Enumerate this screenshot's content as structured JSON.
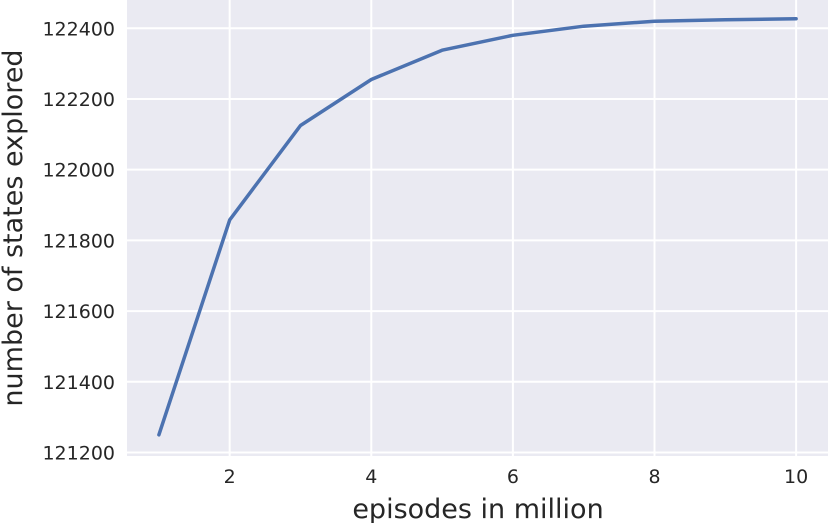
{
  "chart_data": {
    "type": "line",
    "title": "",
    "xlabel": "episodes in million",
    "ylabel": "number of states explored",
    "x": [
      1,
      2,
      3,
      4,
      5,
      6,
      7,
      8,
      9,
      10
    ],
    "series": [
      {
        "values": [
          121250,
          121858,
          122125,
          122255,
          122338,
          122380,
          122406,
          122420,
          122424,
          122427
        ]
      }
    ],
    "xlim": [
      0.55,
      10.45
    ],
    "ylim": [
      121190,
      122480
    ],
    "xticks": [
      2,
      4,
      6,
      8,
      10
    ],
    "yticks": [
      121200,
      121400,
      121600,
      121800,
      122000,
      122200,
      122400
    ],
    "grid": true,
    "legend": "none",
    "colors": {
      "background": "#EAEAF2",
      "grid": "#FFFFFF",
      "line": "#4C72B0",
      "text": "#262626"
    }
  }
}
